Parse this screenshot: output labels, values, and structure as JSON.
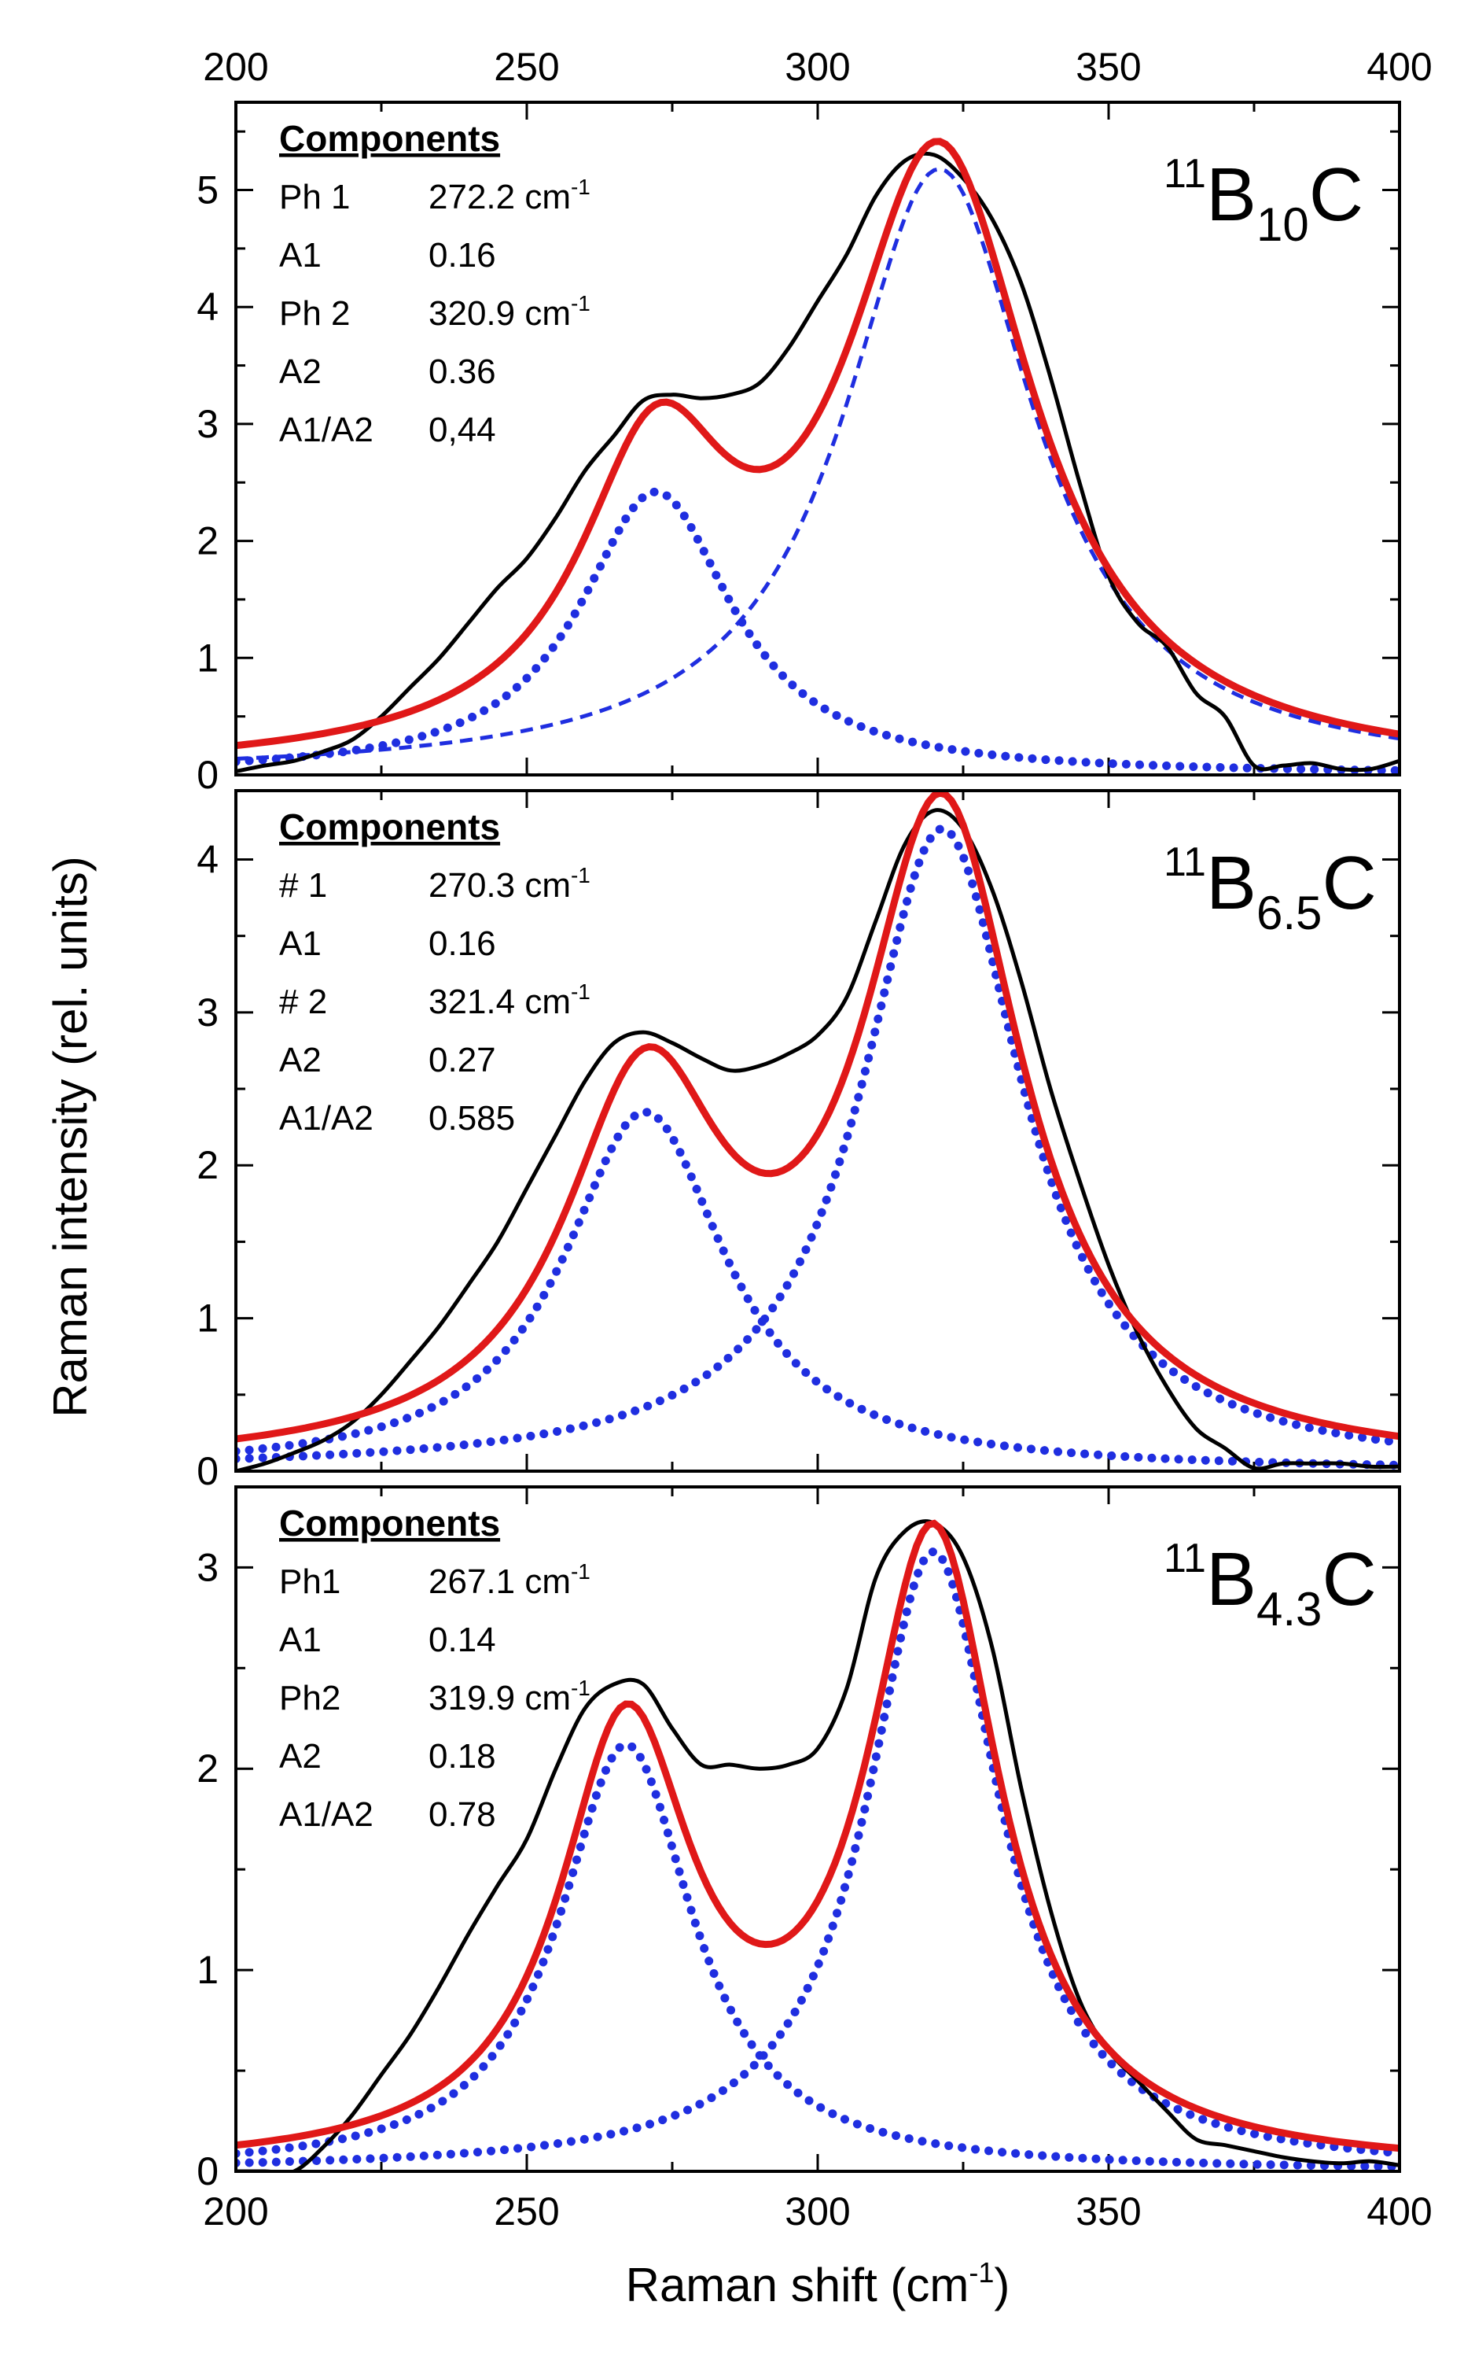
{
  "chart_data": {
    "type": "line",
    "xlabel": "Raman shift (cm",
    "xlabel_sup": "-1",
    "xlabel_tail": ")",
    "ylabel": "Raman intensity (rel. units)",
    "xlim": [
      200,
      400
    ],
    "x_ticks": [
      "200",
      "250",
      "300",
      "350",
      "400"
    ],
    "colors": {
      "measured": "#000000",
      "fit": "#e01818",
      "component": "#1f2ee0"
    },
    "panels": [
      {
        "sample": {
          "sup": "11",
          "base": "B",
          "sub": "10",
          "tail": "C"
        },
        "ylim": [
          0,
          5.75
        ],
        "y_ticks": [
          "0",
          "1",
          "2",
          "3",
          "4",
          "5"
        ],
        "components_title": "Components",
        "components": [
          {
            "label": "Ph 1",
            "value": "272.2 cm",
            "sup": "-1"
          },
          {
            "label": "A1",
            "value": "0.16",
            "sup": ""
          },
          {
            "label": "Ph 2",
            "value": "320.9 cm",
            "sup": "-1"
          },
          {
            "label": "A2",
            "value": "0.36",
            "sup": ""
          },
          {
            "label": "A1/A2",
            "value": "0,44",
            "sup": ""
          }
        ],
        "peaks": [
          {
            "center": 272.2,
            "height": 2.42,
            "hwhm": 16,
            "style": "dotted"
          },
          {
            "center": 320.9,
            "height": 5.18,
            "hwhm": 20,
            "style": "dashed"
          }
        ],
        "measured": {
          "x": [
            200,
            205,
            210,
            215,
            220,
            225,
            230,
            235,
            240,
            245,
            250,
            255,
            260,
            265,
            270,
            275,
            280,
            285,
            290,
            295,
            300,
            305,
            310,
            315,
            320,
            325,
            330,
            335,
            340,
            345,
            350,
            355,
            360,
            365,
            370,
            375,
            380,
            385,
            390,
            395,
            400
          ],
          "y": [
            0.03,
            0.08,
            0.12,
            0.2,
            0.3,
            0.5,
            0.75,
            1.0,
            1.3,
            1.6,
            1.85,
            2.2,
            2.6,
            2.9,
            3.2,
            3.25,
            3.22,
            3.25,
            3.35,
            3.65,
            4.05,
            4.45,
            4.95,
            5.25,
            5.3,
            5.1,
            4.75,
            4.2,
            3.4,
            2.5,
            1.7,
            1.3,
            1.1,
            0.7,
            0.5,
            0.08,
            0.08,
            0.1,
            0.05,
            0.05,
            0.12
          ]
        }
      },
      {
        "sample": {
          "sup": "11",
          "base": "B",
          "sub": "6.5",
          "tail": "C"
        },
        "ylim": [
          0,
          4.45
        ],
        "y_ticks": [
          "0",
          "1",
          "2",
          "3",
          "4"
        ],
        "components_title": "Components",
        "components": [
          {
            "label": "# 1",
            "value": "270.3 cm",
            "sup": "-1"
          },
          {
            "label": "A1",
            "value": "0.16",
            "sup": ""
          },
          {
            "label": "# 2",
            "value": "321.4 cm",
            "sup": "-1"
          },
          {
            "label": "A2",
            "value": "0.27",
            "sup": ""
          },
          {
            "label": "A1/A2",
            "value": "0.585",
            "sup": ""
          }
        ],
        "peaks": [
          {
            "center": 270.3,
            "height": 2.35,
            "hwhm": 17,
            "style": "dotted"
          },
          {
            "center": 321.4,
            "height": 4.2,
            "hwhm": 17,
            "style": "dotted"
          }
        ],
        "measured": {
          "x": [
            200,
            205,
            210,
            215,
            220,
            225,
            230,
            235,
            240,
            245,
            250,
            255,
            260,
            265,
            270,
            275,
            280,
            285,
            290,
            295,
            300,
            305,
            310,
            315,
            320,
            325,
            330,
            335,
            340,
            345,
            350,
            355,
            360,
            365,
            370,
            375,
            380,
            385,
            390,
            395,
            400
          ],
          "y": [
            0.0,
            0.05,
            0.12,
            0.2,
            0.32,
            0.5,
            0.72,
            0.95,
            1.22,
            1.5,
            1.85,
            2.2,
            2.55,
            2.8,
            2.87,
            2.8,
            2.7,
            2.62,
            2.65,
            2.73,
            2.85,
            3.1,
            3.6,
            4.1,
            4.32,
            4.2,
            3.8,
            3.2,
            2.5,
            1.9,
            1.35,
            0.9,
            0.55,
            0.28,
            0.15,
            0.02,
            0.05,
            0.05,
            0.05,
            0.03,
            0.03
          ]
        }
      },
      {
        "sample": {
          "sup": "11",
          "base": "B",
          "sub": "4.3",
          "tail": "C"
        },
        "ylim": [
          0,
          3.4
        ],
        "y_ticks": [
          "0",
          "1",
          "2",
          "3"
        ],
        "components_title": "Components",
        "components": [
          {
            "label": "Ph1",
            "value": "267.1 cm",
            "sup": "-1"
          },
          {
            "label": "A1",
            "value": "0.14",
            "sup": ""
          },
          {
            "label": "Ph2",
            "value": "319.9 cm",
            "sup": "-1"
          },
          {
            "label": "A2",
            "value": "0.18",
            "sup": ""
          },
          {
            "label": "A1/A2",
            "value": "0.78",
            "sup": ""
          }
        ],
        "peaks": [
          {
            "center": 267.1,
            "height": 2.12,
            "hwhm": 14,
            "style": "dotted"
          },
          {
            "center": 319.9,
            "height": 3.08,
            "hwhm": 14,
            "style": "dotted"
          }
        ],
        "measured": {
          "x": [
            200,
            205,
            210,
            215,
            220,
            225,
            230,
            235,
            240,
            245,
            250,
            255,
            260,
            265,
            270,
            275,
            280,
            285,
            290,
            295,
            300,
            305,
            310,
            315,
            320,
            325,
            330,
            335,
            340,
            345,
            350,
            355,
            360,
            365,
            370,
            375,
            380,
            385,
            390,
            395,
            400
          ],
          "y": [
            0.0,
            0.0,
            0.0,
            0.12,
            0.28,
            0.48,
            0.68,
            0.92,
            1.18,
            1.42,
            1.65,
            2.0,
            2.3,
            2.42,
            2.42,
            2.2,
            2.02,
            2.02,
            2.0,
            2.02,
            2.1,
            2.4,
            2.95,
            3.18,
            3.22,
            3.05,
            2.6,
            1.9,
            1.3,
            0.85,
            0.6,
            0.45,
            0.3,
            0.16,
            0.13,
            0.1,
            0.07,
            0.05,
            0.04,
            0.05,
            0.03
          ]
        }
      }
    ]
  }
}
